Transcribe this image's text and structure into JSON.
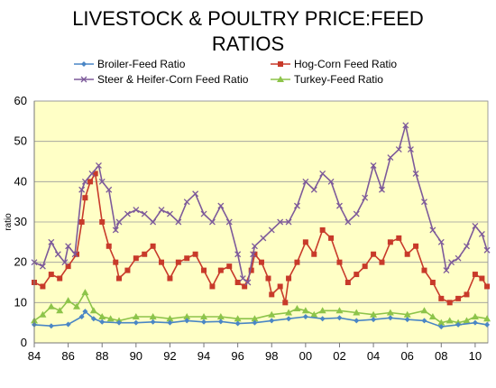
{
  "chart_data": {
    "type": "line",
    "title_lines": [
      "LIVESTOCK & POULTRY PRICE:FEED",
      "RATIOS"
    ],
    "ylabel": "ratio",
    "xlim": [
      1984,
      2010.75
    ],
    "ylim": [
      0,
      60
    ],
    "x_ticks": [
      1984,
      1986,
      1988,
      1990,
      1992,
      1994,
      1996,
      1998,
      2000,
      2002,
      2004,
      2006,
      2008,
      2010
    ],
    "x_tick_labels": [
      "84",
      "86",
      "88",
      "90",
      "92",
      "94",
      "96",
      "98",
      "00",
      "02",
      "04",
      "06",
      "08",
      "10"
    ],
    "y_ticks": [
      0,
      10,
      20,
      30,
      40,
      50,
      60
    ],
    "y_tick_labels": [
      "0",
      "10",
      "20",
      "30",
      "40",
      "50",
      "60"
    ],
    "grid": "horizontal",
    "legend_position": "top",
    "plot_background": "#ffffc6",
    "series": [
      {
        "name": "Broiler-Feed Ratio",
        "color": "#4a86c5",
        "marker": "diamond",
        "points": [
          [
            1984,
            4.5
          ],
          [
            1985,
            4.2
          ],
          [
            1986,
            4.6
          ],
          [
            1986.8,
            6.5
          ],
          [
            1987,
            7.8
          ],
          [
            1987.5,
            6.0
          ],
          [
            1988,
            5.2
          ],
          [
            1989,
            5.0
          ],
          [
            1990,
            5.0
          ],
          [
            1991,
            5.2
          ],
          [
            1992,
            5.0
          ],
          [
            1993,
            5.5
          ],
          [
            1994,
            5.2
          ],
          [
            1995,
            5.3
          ],
          [
            1996,
            4.8
          ],
          [
            1997,
            5.0
          ],
          [
            1998,
            5.5
          ],
          [
            1999,
            6.0
          ],
          [
            2000,
            6.5
          ],
          [
            2001,
            6.0
          ],
          [
            2002,
            6.2
          ],
          [
            2003,
            5.5
          ],
          [
            2004,
            5.8
          ],
          [
            2005,
            6.2
          ],
          [
            2006,
            5.8
          ],
          [
            2007,
            5.5
          ],
          [
            2008,
            4.0
          ],
          [
            2009,
            4.5
          ],
          [
            2010,
            5.0
          ],
          [
            2010.7,
            4.5
          ]
        ]
      },
      {
        "name": "Hog-Corn Feed Ratio",
        "color": "#c83a2a",
        "marker": "square",
        "points": [
          [
            1984,
            15
          ],
          [
            1984.5,
            14
          ],
          [
            1985,
            17
          ],
          [
            1985.5,
            16
          ],
          [
            1986,
            19
          ],
          [
            1986.5,
            22
          ],
          [
            1986.8,
            30
          ],
          [
            1987,
            36
          ],
          [
            1987.3,
            40
          ],
          [
            1987.6,
            42
          ],
          [
            1988,
            30
          ],
          [
            1988.4,
            24
          ],
          [
            1988.8,
            20
          ],
          [
            1989,
            16
          ],
          [
            1989.5,
            18
          ],
          [
            1990,
            21
          ],
          [
            1990.5,
            22
          ],
          [
            1991,
            24
          ],
          [
            1991.5,
            20
          ],
          [
            1992,
            16
          ],
          [
            1992.5,
            20
          ],
          [
            1993,
            21
          ],
          [
            1993.5,
            22
          ],
          [
            1994,
            18
          ],
          [
            1994.5,
            14
          ],
          [
            1995,
            18
          ],
          [
            1995.5,
            19
          ],
          [
            1996,
            15
          ],
          [
            1996.4,
            14
          ],
          [
            1996.8,
            18
          ],
          [
            1997,
            22
          ],
          [
            1997.4,
            20
          ],
          [
            1997.8,
            16
          ],
          [
            1998,
            12
          ],
          [
            1998.5,
            14
          ],
          [
            1998.8,
            10
          ],
          [
            1999,
            16
          ],
          [
            1999.5,
            20
          ],
          [
            2000,
            25
          ],
          [
            2000.5,
            22
          ],
          [
            2001,
            28
          ],
          [
            2001.5,
            26
          ],
          [
            2002,
            20
          ],
          [
            2002.5,
            15
          ],
          [
            2003,
            17
          ],
          [
            2003.5,
            19
          ],
          [
            2004,
            22
          ],
          [
            2004.5,
            20
          ],
          [
            2005,
            25
          ],
          [
            2005.5,
            26
          ],
          [
            2006,
            22
          ],
          [
            2006.5,
            24
          ],
          [
            2007,
            18
          ],
          [
            2007.5,
            15
          ],
          [
            2008,
            11
          ],
          [
            2008.5,
            10
          ],
          [
            2009,
            11
          ],
          [
            2009.5,
            12
          ],
          [
            2010,
            17
          ],
          [
            2010.4,
            16
          ],
          [
            2010.7,
            14
          ]
        ]
      },
      {
        "name": "Steer & Heifer-Corn Feed Ratio",
        "color": "#7d5a9a",
        "marker": "x",
        "points": [
          [
            1984,
            20
          ],
          [
            1984.5,
            19
          ],
          [
            1985,
            25
          ],
          [
            1985.4,
            22
          ],
          [
            1985.8,
            20
          ],
          [
            1986,
            24
          ],
          [
            1986.4,
            22
          ],
          [
            1986.8,
            38
          ],
          [
            1987,
            40
          ],
          [
            1987.4,
            42
          ],
          [
            1987.8,
            44
          ],
          [
            1988,
            40
          ],
          [
            1988.4,
            38
          ],
          [
            1988.8,
            28
          ],
          [
            1989,
            30
          ],
          [
            1989.5,
            32
          ],
          [
            1990,
            33
          ],
          [
            1990.5,
            32
          ],
          [
            1991,
            30
          ],
          [
            1991.5,
            33
          ],
          [
            1992,
            32
          ],
          [
            1992.5,
            30
          ],
          [
            1993,
            35
          ],
          [
            1993.5,
            37
          ],
          [
            1994,
            32
          ],
          [
            1994.5,
            30
          ],
          [
            1995,
            34
          ],
          [
            1995.5,
            30
          ],
          [
            1996,
            22
          ],
          [
            1996.3,
            16
          ],
          [
            1996.6,
            15
          ],
          [
            1996.9,
            22
          ],
          [
            1997,
            24
          ],
          [
            1997.5,
            26
          ],
          [
            1998,
            28
          ],
          [
            1998.5,
            30
          ],
          [
            1999,
            30
          ],
          [
            1999.5,
            34
          ],
          [
            2000,
            40
          ],
          [
            2000.5,
            38
          ],
          [
            2001,
            42
          ],
          [
            2001.5,
            40
          ],
          [
            2002,
            34
          ],
          [
            2002.5,
            30
          ],
          [
            2003,
            32
          ],
          [
            2003.5,
            36
          ],
          [
            2004,
            44
          ],
          [
            2004.5,
            38
          ],
          [
            2005,
            46
          ],
          [
            2005.5,
            48
          ],
          [
            2005.9,
            54
          ],
          [
            2006.2,
            48
          ],
          [
            2006.5,
            42
          ],
          [
            2007,
            35
          ],
          [
            2007.5,
            28
          ],
          [
            2008,
            25
          ],
          [
            2008.3,
            18
          ],
          [
            2008.6,
            20
          ],
          [
            2009,
            21
          ],
          [
            2009.5,
            24
          ],
          [
            2010,
            29
          ],
          [
            2010.4,
            27
          ],
          [
            2010.7,
            23
          ]
        ]
      },
      {
        "name": "Turkey-Feed Ratio",
        "color": "#8dc44a",
        "marker": "triangle",
        "points": [
          [
            1984,
            5.5
          ],
          [
            1984.5,
            7.0
          ],
          [
            1985,
            9.0
          ],
          [
            1985.5,
            8.0
          ],
          [
            1986,
            10.5
          ],
          [
            1986.5,
            9.0
          ],
          [
            1987,
            12.5
          ],
          [
            1987.5,
            8.0
          ],
          [
            1988,
            6.5
          ],
          [
            1988.5,
            6.0
          ],
          [
            1989,
            5.5
          ],
          [
            1990,
            6.5
          ],
          [
            1991,
            6.5
          ],
          [
            1992,
            6.0
          ],
          [
            1993,
            6.5
          ],
          [
            1994,
            6.5
          ],
          [
            1995,
            6.5
          ],
          [
            1996,
            6.0
          ],
          [
            1997,
            6.0
          ],
          [
            1998,
            7.0
          ],
          [
            1999,
            7.5
          ],
          [
            1999.5,
            8.5
          ],
          [
            2000,
            8.0
          ],
          [
            2000.5,
            7.0
          ],
          [
            2001,
            8.0
          ],
          [
            2002,
            8.0
          ],
          [
            2003,
            7.5
          ],
          [
            2004,
            7.0
          ],
          [
            2005,
            7.5
          ],
          [
            2006,
            7.0
          ],
          [
            2007,
            8.0
          ],
          [
            2007.5,
            6.5
          ],
          [
            2008,
            5.0
          ],
          [
            2008.5,
            5.5
          ],
          [
            2009,
            5.0
          ],
          [
            2009.5,
            5.5
          ],
          [
            2010,
            6.5
          ],
          [
            2010.7,
            6.0
          ]
        ]
      }
    ]
  }
}
